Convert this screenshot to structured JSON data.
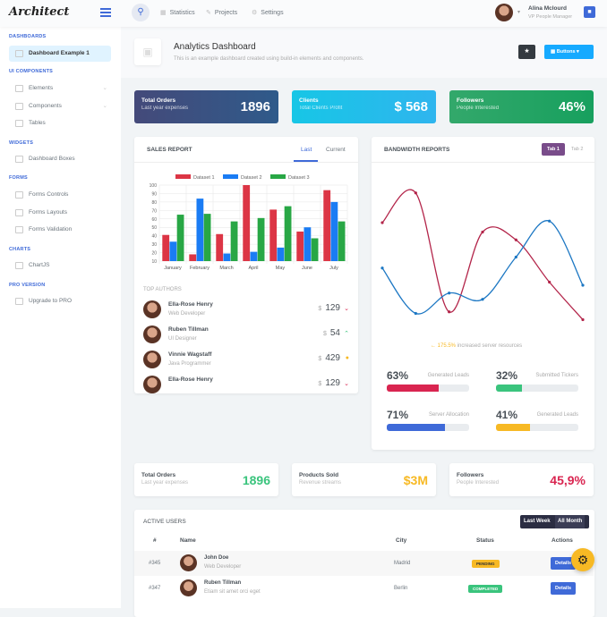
{
  "header": {
    "logo": "Architect",
    "nav": [
      {
        "icon": "statistics-icon",
        "label": "Statistics"
      },
      {
        "icon": "projects-icon",
        "label": "Projects"
      },
      {
        "icon": "settings-icon",
        "label": "Settings"
      }
    ],
    "user": {
      "name": "Alina Mclourd",
      "role": "VP People Manager"
    }
  },
  "sidebar": {
    "sections": [
      {
        "title": "DASHBOARDS",
        "items": [
          {
            "label": "Dashboard Example 1",
            "active": true
          }
        ]
      },
      {
        "title": "UI COMPONENTS",
        "items": [
          {
            "label": "Elements"
          },
          {
            "label": "Components"
          },
          {
            "label": "Tables"
          }
        ]
      },
      {
        "title": "WIDGETS",
        "items": [
          {
            "label": "Dashboard Boxes"
          }
        ]
      },
      {
        "title": "FORMS",
        "items": [
          {
            "label": "Forms Controls"
          },
          {
            "label": "Forms Layouts"
          },
          {
            "label": "Forms Validation"
          }
        ]
      },
      {
        "title": "CHARTS",
        "items": [
          {
            "label": "ChartJS"
          }
        ]
      },
      {
        "title": "PRO VERSION",
        "items": [
          {
            "label": "Upgrade to PRO"
          }
        ]
      }
    ]
  },
  "page": {
    "title": "Analytics Dashboard",
    "subtitle": "This is an example dashboard created using build-in elements and components.",
    "buttons_label": "Buttons"
  },
  "tiles": [
    {
      "title": "Total Orders",
      "sub": "Last year expenses",
      "value": "1896"
    },
    {
      "title": "Clients",
      "sub": "Total Clients Profit",
      "value": "$ 568"
    },
    {
      "title": "Followers",
      "sub": "People Interested",
      "value": "46%"
    }
  ],
  "sales": {
    "title": "SALES REPORT",
    "tabs": [
      "Last",
      "Current"
    ],
    "authors_title": "TOP AUTHORS",
    "authors": [
      {
        "name": "Ella-Rose Henry",
        "role": "Web Developer",
        "currency": "$",
        "value": "129",
        "trend": "down"
      },
      {
        "name": "Ruben Tillman",
        "role": "UI Designer",
        "currency": "$",
        "value": "54",
        "trend": "up"
      },
      {
        "name": "Vinnie Wagstaff",
        "role": "Java Programmer",
        "currency": "$",
        "value": "429",
        "trend": "neutral"
      },
      {
        "name": "Ella-Rose Henry",
        "role": "",
        "currency": "$",
        "value": "129",
        "trend": "down"
      }
    ]
  },
  "bandwidth": {
    "title": "BANDWIDTH REPORTS",
    "tabs": [
      "Tab 1",
      "Tab 2"
    ],
    "note_value": "175.5%",
    "note_text": "increased server resources",
    "progress": [
      {
        "pct": 63,
        "label": "Generated Leads",
        "color": "#d92550"
      },
      {
        "pct": 32,
        "label": "Submitted Tickers",
        "color": "#3ac47d"
      },
      {
        "pct": 71,
        "label": "Server Allocation",
        "color": "#3f6ad8"
      },
      {
        "pct": 41,
        "label": "Generated Leads",
        "color": "#f7b924"
      }
    ]
  },
  "small_cards": [
    {
      "title": "Total Orders",
      "sub": "Last year expenses",
      "value": "1896",
      "color": "#3ac47d"
    },
    {
      "title": "Products Sold",
      "sub": "Revenue streams",
      "value": "$3M",
      "color": "#f7b924"
    },
    {
      "title": "Followers",
      "sub": "People Interested",
      "value": "45,9%",
      "color": "#d92550"
    }
  ],
  "users": {
    "title": "ACTIVE USERS",
    "toggle": [
      "Last Week",
      "All Month"
    ],
    "columns": [
      "#",
      "Name",
      "City",
      "Status",
      "Actions"
    ],
    "rows": [
      {
        "id": "#345",
        "name": "John Doe",
        "sub": "Web Developer",
        "city": "Madrid",
        "status": "PENDING",
        "action": "Details"
      },
      {
        "id": "#347",
        "name": "Ruben Tillman",
        "sub": "Etiam sit amet orci eget",
        "city": "Berlin",
        "status": "COMPLETED",
        "action": "Details"
      }
    ]
  },
  "chart_data": [
    {
      "type": "bar",
      "categories": [
        "January",
        "February",
        "March",
        "April",
        "May",
        "June",
        "July"
      ],
      "ylim": [
        10,
        100
      ],
      "yticks": [
        10,
        20,
        30,
        40,
        50,
        60,
        70,
        80,
        90,
        100
      ],
      "legend": "top",
      "grid": true,
      "series": [
        {
          "name": "Dataset 1",
          "color": "#dc3545",
          "values": [
            41,
            18,
            42,
            100,
            71,
            45,
            94
          ]
        },
        {
          "name": "Dataset 2",
          "color": "#1a7cf4",
          "values": [
            33,
            84,
            19,
            21,
            26,
            50,
            80
          ]
        },
        {
          "name": "Dataset 3",
          "color": "#28a745",
          "values": [
            65,
            66,
            57,
            61,
            75,
            37,
            57
          ]
        }
      ]
    },
    {
      "type": "line",
      "grid": false,
      "series": [
        {
          "color": "#b3254a",
          "values": [
            68,
            87,
            11,
            62,
            57,
            30,
            6
          ]
        },
        {
          "color": "#1c77c3",
          "values": [
            39,
            10,
            23,
            19,
            46,
            69,
            28
          ]
        }
      ]
    }
  ]
}
